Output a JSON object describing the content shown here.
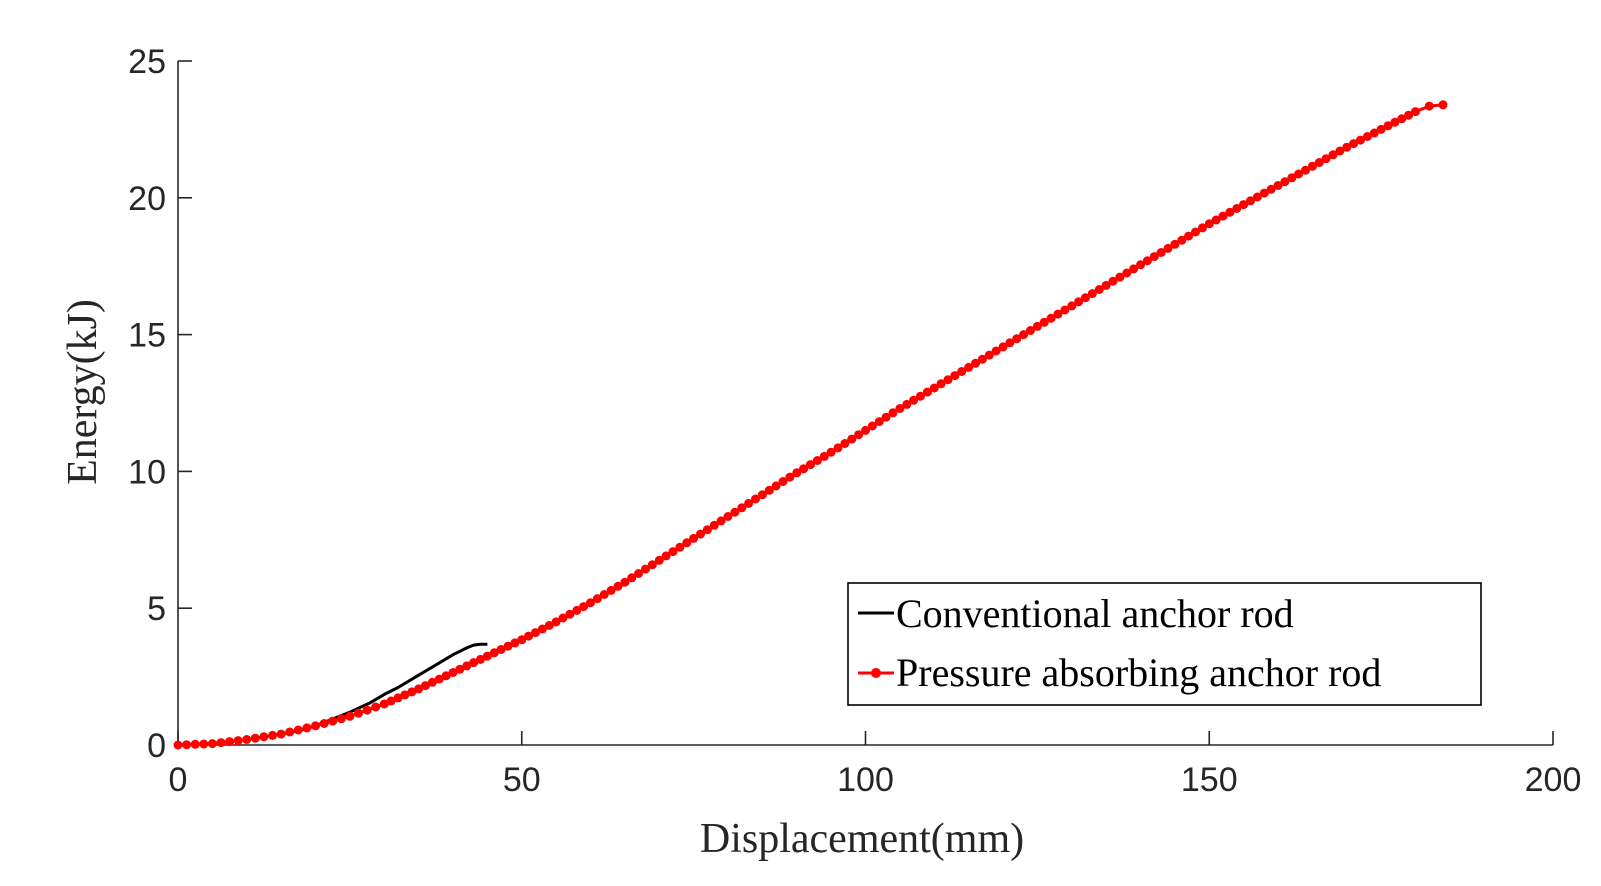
{
  "chart_data": {
    "type": "line",
    "title": "",
    "xlabel": "Displacement(mm)",
    "ylabel": "Energy(kJ)",
    "xlim": [
      0,
      200
    ],
    "ylim": [
      0,
      25
    ],
    "xticks": [
      0,
      50,
      100,
      150,
      200
    ],
    "yticks": [
      0,
      5,
      10,
      15,
      20,
      25
    ],
    "grid": false,
    "box": false,
    "legend_position": "lower-right",
    "series": [
      {
        "name": "Conventional anchor rod",
        "color": "#000000",
        "marker": "none",
        "x": [
          0,
          5,
          10,
          15,
          18,
          20,
          22,
          25,
          28,
          30,
          32,
          35,
          38,
          40,
          42,
          43,
          44,
          45
        ],
        "y": [
          0,
          0.05,
          0.2,
          0.4,
          0.55,
          0.7,
          0.9,
          1.2,
          1.55,
          1.85,
          2.1,
          2.55,
          3.0,
          3.3,
          3.55,
          3.65,
          3.68,
          3.68
        ]
      },
      {
        "name": "Pressure absorbing anchor rod",
        "color": "#ff0000",
        "marker": "dot",
        "x": [
          0,
          5,
          10,
          15,
          20,
          25,
          30,
          35,
          40,
          45,
          50,
          55,
          60,
          65,
          70,
          75,
          80,
          85,
          90,
          95,
          100,
          105,
          110,
          115,
          120,
          125,
          130,
          135,
          140,
          145,
          150,
          155,
          160,
          165,
          170,
          175,
          180,
          182,
          184
        ],
        "y": [
          0,
          0.05,
          0.2,
          0.4,
          0.7,
          1.05,
          1.5,
          2.05,
          2.65,
          3.25,
          3.85,
          4.5,
          5.2,
          5.95,
          6.75,
          7.55,
          8.35,
          9.15,
          9.95,
          10.7,
          11.5,
          12.3,
          13.05,
          13.8,
          14.55,
          15.3,
          16.05,
          16.8,
          17.55,
          18.3,
          19.05,
          19.75,
          20.45,
          21.15,
          21.85,
          22.5,
          23.15,
          23.35,
          23.4
        ]
      }
    ]
  }
}
